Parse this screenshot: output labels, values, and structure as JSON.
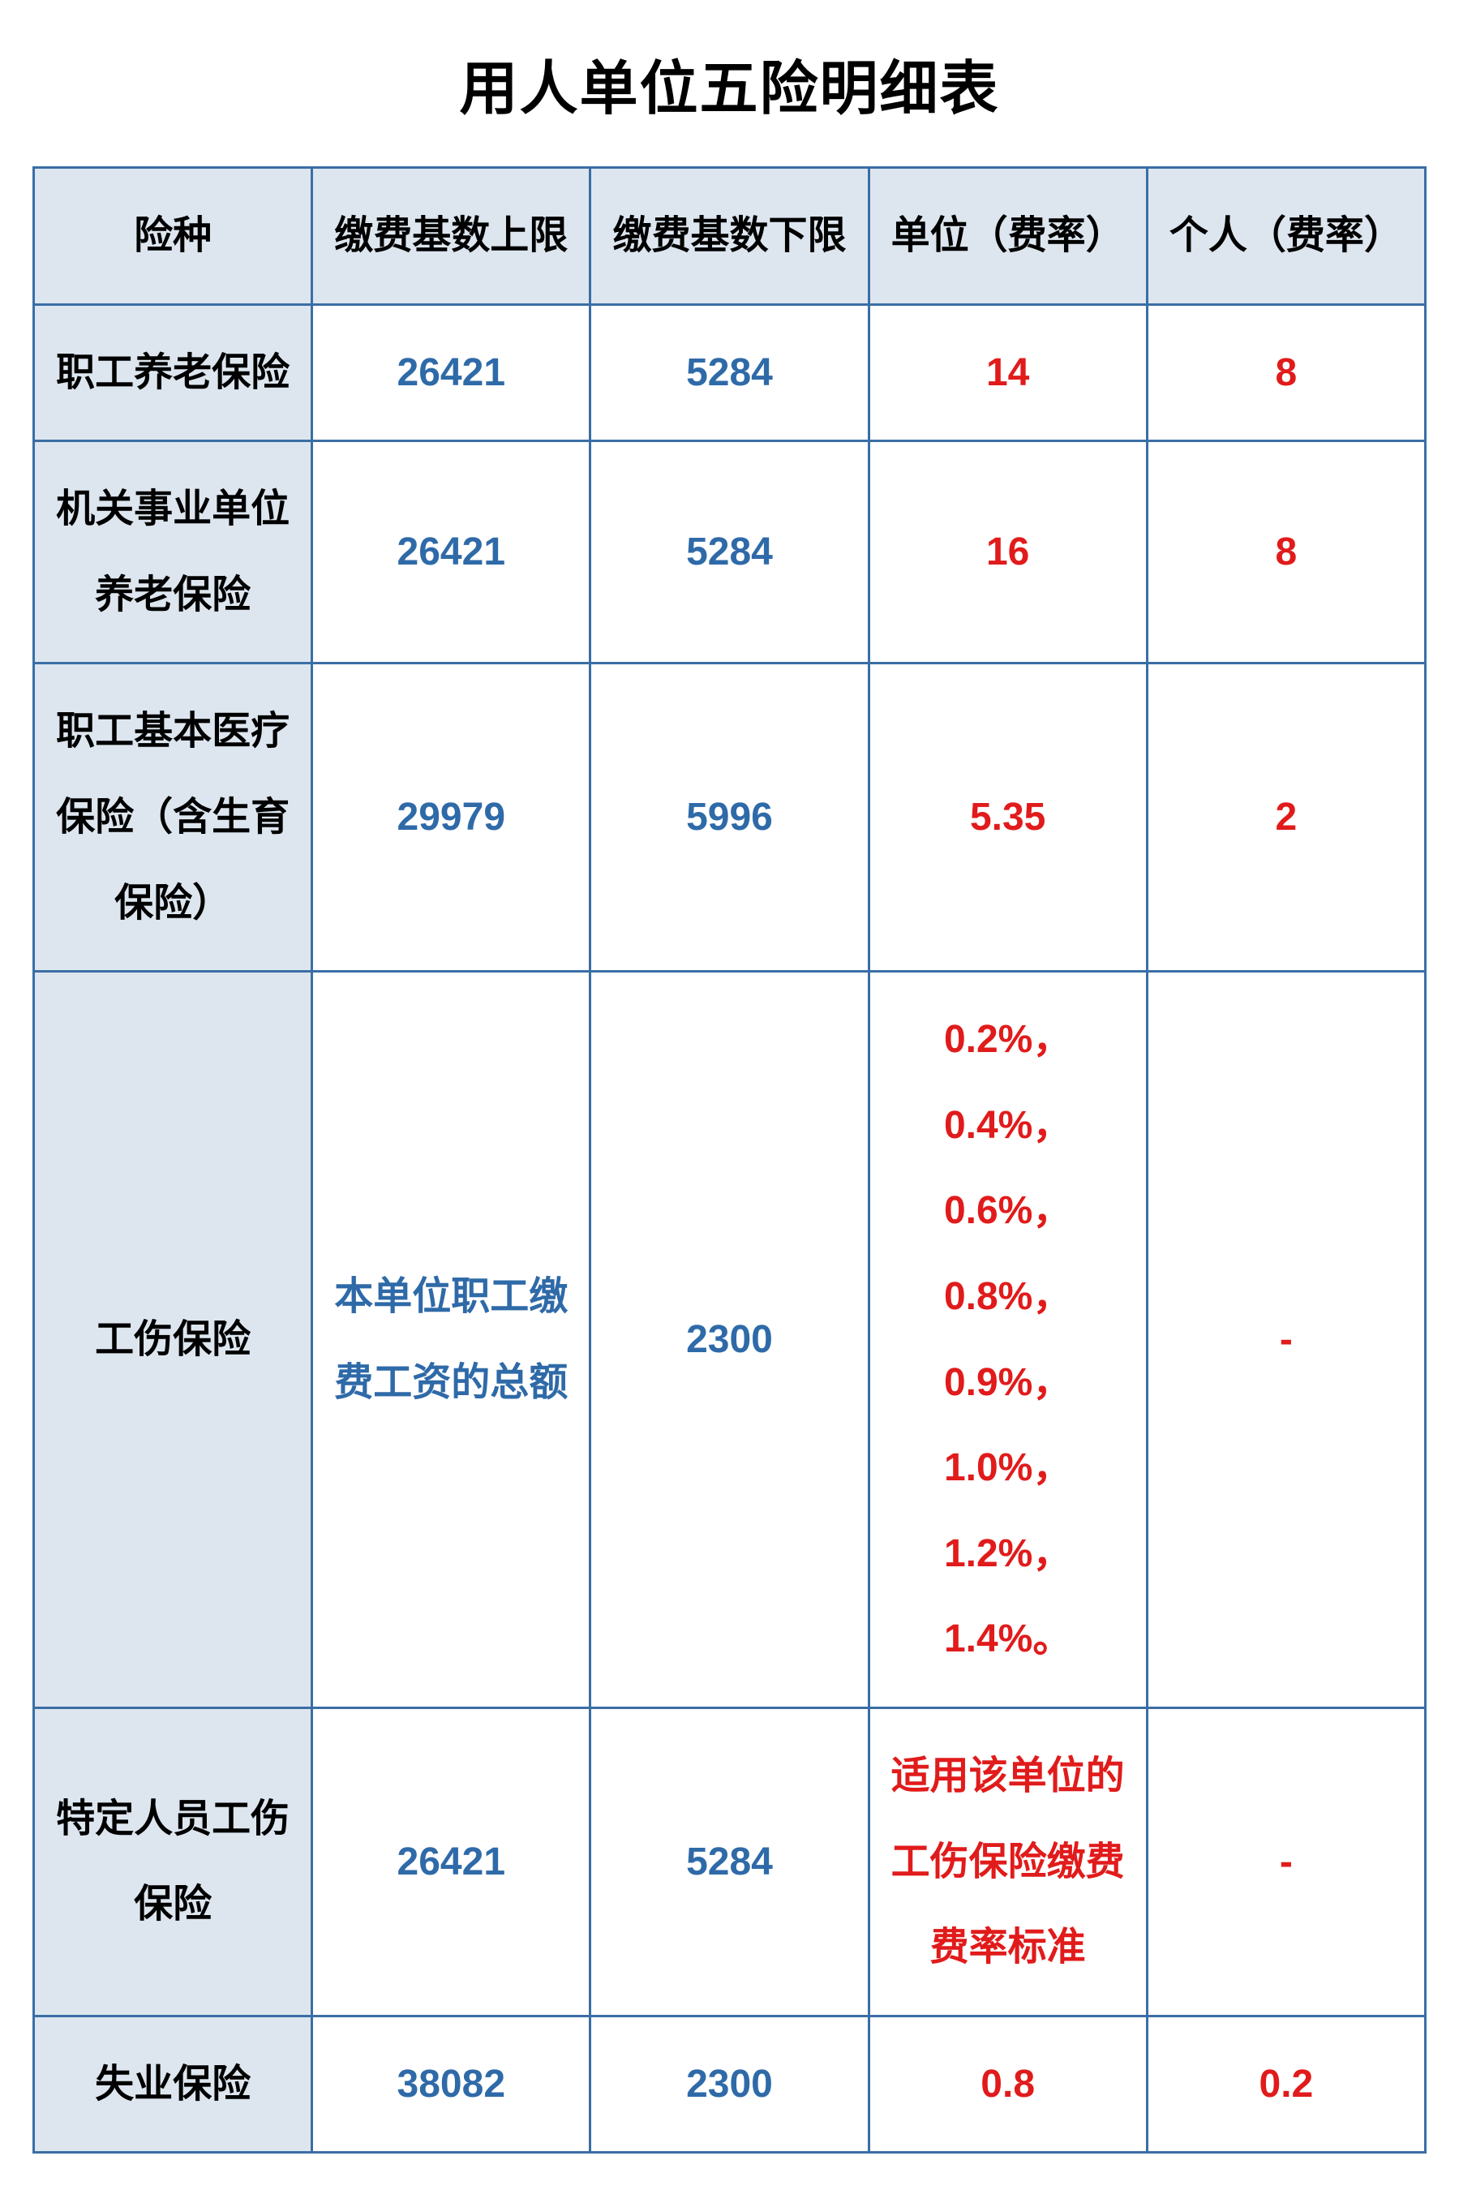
{
  "title": "用人单位五险明细表",
  "table": {
    "header_bg": "#dde6ef",
    "border_color": "#3a6ea5",
    "label_color": "#000000",
    "blue_text": "#2f6aa8",
    "red_text": "#e11b1b",
    "columns": [
      "险种",
      "缴费基数上限",
      "缴费基数下限",
      "单位（费率）",
      "个人（费率）"
    ],
    "rows": [
      {
        "label": "职工养老保险",
        "upper": "26421",
        "lower": "5284",
        "unit_rate": "14",
        "personal_rate": "8"
      },
      {
        "label": "机关事业单位养老保险",
        "upper": "26421",
        "lower": "5284",
        "unit_rate": "16",
        "personal_rate": "8"
      },
      {
        "label": "职工基本医疗保险（含生育保险）",
        "upper": "29979",
        "lower": "5996",
        "unit_rate": "5.35",
        "personal_rate": "2"
      },
      {
        "label": "工伤保险",
        "upper": "本单位职工缴费工资的总额",
        "lower": "2300",
        "unit_rate": "0.2%，0.4%，0.6%，0.8%，0.9%，1.0%，1.2%，1.4%。",
        "personal_rate": "-"
      },
      {
        "label": "特定人员工伤保险",
        "upper": "26421",
        "lower": "5284",
        "unit_rate": "适用该单位的工伤保险缴费费率标准",
        "personal_rate": "-"
      },
      {
        "label": "失业保险",
        "upper": "38082",
        "lower": "2300",
        "unit_rate": "0.8",
        "personal_rate": "0.2"
      }
    ]
  },
  "style": {
    "title_fontsize": 72,
    "cell_fontsize": 48,
    "border_width": 3,
    "line_height": 2.2,
    "page_bg": "#ffffff"
  }
}
